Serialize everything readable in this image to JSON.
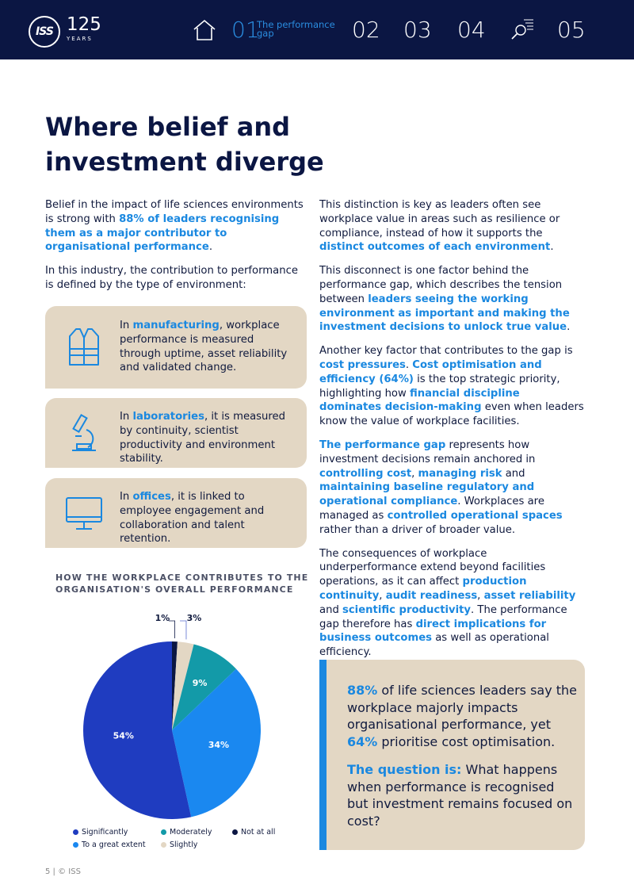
{
  "header": {
    "logo_text": "ISS",
    "years_number": "125",
    "years_label": "YEARS",
    "nav_active_number": "01",
    "nav_active_label": "The performance gap",
    "nav_items": [
      "02",
      "03",
      "04",
      "05"
    ],
    "icons": [
      "home-icon",
      "search-icon"
    ],
    "colors": {
      "bar": "#0b1643",
      "accent": "#1a88e0"
    }
  },
  "title": "Where belief and investment diverge",
  "left": {
    "p1_a": "Belief in the impact of life sciences environments is strong with ",
    "p1_hl": "88% of leaders recognising them as a major contributor to organisational performance",
    "p1_b": ".",
    "p2": "In this industry, the contribution to performance is defined by the type of environment:"
  },
  "cards": [
    {
      "icon": "vest-icon",
      "pre": "In ",
      "hl": "manufacturing",
      "post": ", workplace performance is measured through uptime, asset reliability and validated change."
    },
    {
      "icon": "microscope-icon",
      "pre": "In ",
      "hl": "laboratories",
      "post": ", it is measured by continuity, scientist productivity and environment stability."
    },
    {
      "icon": "monitor-icon",
      "pre": "In ",
      "hl": "offices",
      "post": ", it is linked to employee engagement and collaboration and talent retention."
    }
  ],
  "chart_data": {
    "type": "pie",
    "title": "HOW THE WORKPLACE CONTRIBUTES TO THE ORGANISATION'S OVERALL PERFORMANCE",
    "slices": [
      {
        "name": "Not at all",
        "value": 1,
        "label": "1%",
        "color": "#0b1643"
      },
      {
        "name": "Slightly",
        "value": 3,
        "label": "3%",
        "color": "#e3d7c4"
      },
      {
        "name": "Moderately",
        "value": 9,
        "label": "9%",
        "color": "#139aa8"
      },
      {
        "name": "To a great extent",
        "value": 34,
        "label": "34%",
        "color": "#1a88f0"
      },
      {
        "name": "Significantly",
        "value": 54,
        "label": "54%",
        "color": "#1f3cc0"
      }
    ],
    "legend": [
      {
        "name": "Significantly",
        "color": "#1f3cc0"
      },
      {
        "name": "Moderately",
        "color": "#139aa8"
      },
      {
        "name": "Not at all",
        "color": "#0b1643"
      },
      {
        "name": "To a great extent",
        "color": "#1a88f0"
      },
      {
        "name": "Slightly",
        "color": "#e3d7c4"
      }
    ]
  },
  "right": {
    "r1_a": "This distinction is key as leaders often see workplace value in areas such as resilience or compliance, instead of how it supports the ",
    "r1_hl": "distinct outcomes of each environment",
    "r1_b": ".",
    "r2_a": "This disconnect is one factor behind the performance gap, which describes the tension between ",
    "r2_hl": "leaders seeing the working environment as important and making the investment decisions to unlock true value",
    "r2_b": ".",
    "r3_a": "Another key factor that contributes to the gap is ",
    "r3_hl1": "cost pressures",
    "r3_b": ". ",
    "r3_hl2": "Cost optimisation and efficiency (64%)",
    "r3_c": " is the top strategic priority, highlighting how ",
    "r3_hl3": "financial discipline dominates decision-making",
    "r3_d": " even when leaders know the value of workplace facilities.",
    "r4_hl1": "The performance gap",
    "r4_a": " represents how investment decisions remain anchored in ",
    "r4_hl2": "controlling cost",
    "r4_b": ", ",
    "r4_hl3": "managing risk",
    "r4_c": " and ",
    "r4_hl4": "maintaining baseline regulatory and operational compliance",
    "r4_d": ". Workplaces are  managed as ",
    "r4_hl5": "controlled operational spaces",
    "r4_e": " rather than a driver of broader value.",
    "r5_a": "The consequences of workplace underperformance extend beyond facilities operations, as it can affect ",
    "r5_hl1": "production continuity",
    "r5_b": ", ",
    "r5_hl2": "audit readiness",
    "r5_c": ", ",
    "r5_hl3": "asset reliability",
    "r5_d": " and ",
    "r5_hl4": "scientific productivity",
    "r5_e": ". The performance gap therefore has ",
    "r5_hl5": "direct implications for business outcomes",
    "r5_f": " as well as operational efficiency."
  },
  "callout": {
    "c1_hl1": "88%",
    "c1_a": " of life sciences leaders say the workplace majorly impacts organisational performance, yet ",
    "c1_hl2": "64%",
    "c1_b": " prioritise cost optimisation.",
    "c2_hl": "The question is:",
    "c2_a": " What happens when performance is recognised but investment remains focused on cost?"
  },
  "footer": "5 | © ISS"
}
